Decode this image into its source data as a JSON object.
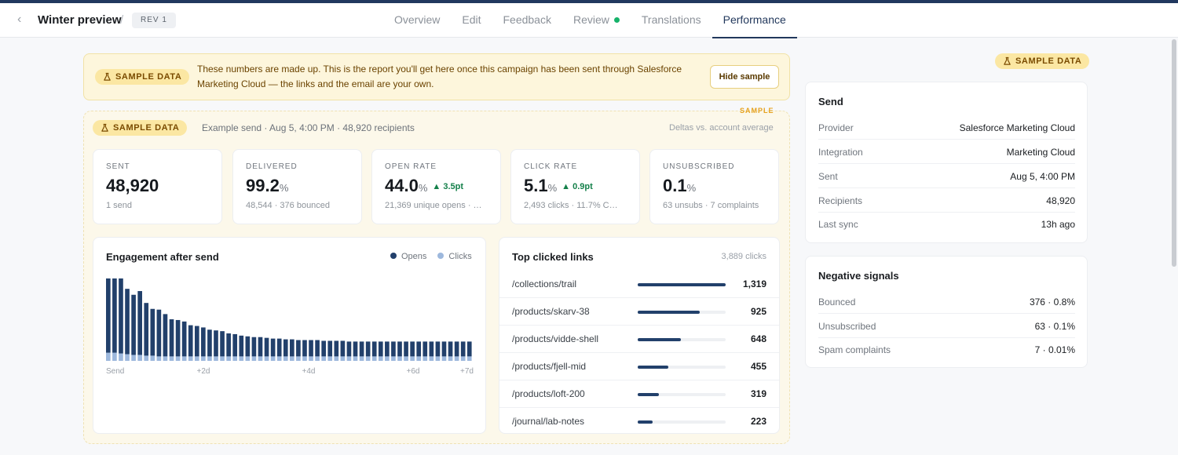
{
  "header": {
    "back_icon": "chevron-left-icon",
    "title": "Winter preview",
    "separator": "/",
    "rev_badge": "REV 1",
    "tabs": [
      {
        "label": "Overview"
      },
      {
        "label": "Edit"
      },
      {
        "label": "Feedback"
      },
      {
        "label": "Review"
      },
      {
        "label": "Translations"
      },
      {
        "label": "Performance"
      }
    ],
    "active_tab": "Performance",
    "review_dot_color": "#16b26a"
  },
  "banner": {
    "pill": "SAMPLE DATA",
    "text": "These numbers are made up. This is the report you'll get here once this campaign has been sent through Salesforce Marketing Cloud — the links and the email are your own.",
    "hide_button": "Hide sample"
  },
  "report": {
    "corner_tag": "SAMPLE",
    "pill": "SAMPLE DATA",
    "subtitle": "Example send · Aug 5, 4:00 PM · 48,920 recipients",
    "note": "Deltas vs. account average",
    "stats": [
      {
        "label": "SENT",
        "value": "48,920",
        "unit": "",
        "delta": "",
        "sub": "1 send"
      },
      {
        "label": "DELIVERED",
        "value": "99.2",
        "unit": "%",
        "delta": "",
        "sub": "48,544 · 376 bounced"
      },
      {
        "label": "OPEN RATE",
        "value": "44.0",
        "unit": "%",
        "delta": "▲ 3.5pt",
        "sub": "21,369 unique opens · …"
      },
      {
        "label": "CLICK RATE",
        "value": "5.1",
        "unit": "%",
        "delta": "▲ 0.9pt",
        "sub": "2,493 clicks · 11.7% C…"
      },
      {
        "label": "UNSUBSCRIBED",
        "value": "0.1",
        "unit": "%",
        "delta": "",
        "sub": "63 unsubs · 7 complaints"
      }
    ]
  },
  "engagement": {
    "title": "Engagement after send",
    "legend": [
      {
        "label": "Opens",
        "color": "#22406b"
      },
      {
        "label": "Clicks",
        "color": "#9db8dd"
      }
    ],
    "x_ticks": [
      "Send",
      "+2d",
      "+4d",
      "+6d",
      "+7d"
    ]
  },
  "chart_data": {
    "type": "bar",
    "title": "Engagement after send",
    "series": [
      {
        "name": "Opens",
        "values": [
          100,
          100,
          101,
          88,
          81,
          86,
          71,
          63,
          63,
          57,
          50,
          49,
          47,
          42,
          41,
          39,
          36,
          35,
          34,
          31,
          30,
          28,
          27,
          26,
          26,
          25,
          24,
          24,
          23,
          23,
          22,
          22,
          22,
          22,
          21,
          21,
          21,
          21,
          20,
          20,
          20,
          20,
          20,
          20,
          20,
          20,
          20,
          20,
          20,
          20,
          20,
          20,
          20,
          20,
          20,
          20,
          20,
          20
        ]
      },
      {
        "name": "Clicks",
        "values": [
          11,
          11,
          10,
          9,
          8,
          8,
          7,
          7,
          6,
          6,
          6,
          6,
          6,
          6,
          6,
          6,
          6,
          6,
          6,
          6,
          6,
          6,
          6,
          6,
          6,
          6,
          6,
          6,
          6,
          6,
          6,
          6,
          6,
          6,
          6,
          6,
          6,
          6,
          6,
          6,
          6,
          6,
          6,
          6,
          6,
          6,
          6,
          6,
          6,
          6,
          6,
          6,
          6,
          6,
          6,
          6,
          6,
          6
        ]
      }
    ],
    "stacked": true,
    "x_ticks": [
      "Send",
      "+2d",
      "+4d",
      "+6d",
      "+7d"
    ],
    "ylim": [
      0,
      112
    ],
    "grid": false,
    "legend": "top-right"
  },
  "links": {
    "title": "Top clicked links",
    "total": "3,889 clicks",
    "items": [
      {
        "path": "/collections/trail",
        "clicks": "1,319",
        "value": 1319
      },
      {
        "path": "/products/skarv-38",
        "clicks": "925",
        "value": 925
      },
      {
        "path": "/products/vidde-shell",
        "clicks": "648",
        "value": 648
      },
      {
        "path": "/products/fjell-mid",
        "clicks": "455",
        "value": 455
      },
      {
        "path": "/products/loft-200",
        "clicks": "319",
        "value": 319
      },
      {
        "path": "/journal/lab-notes",
        "clicks": "223",
        "value": 223
      }
    ],
    "max_value": 1319
  },
  "sidebar": {
    "pill": "SAMPLE DATA",
    "send": {
      "title": "Send",
      "rows": [
        {
          "k": "Provider",
          "v": "Salesforce Marketing Cloud"
        },
        {
          "k": "Integration",
          "v": "Marketing Cloud"
        },
        {
          "k": "Sent",
          "v": "Aug 5, 4:00 PM"
        },
        {
          "k": "Recipients",
          "v": "48,920"
        },
        {
          "k": "Last sync",
          "v": "13h ago"
        }
      ]
    },
    "negative": {
      "title": "Negative signals",
      "rows": [
        {
          "k": "Bounced",
          "v": "376 · 0.8%"
        },
        {
          "k": "Unsubscribed",
          "v": "63 · 0.1%"
        },
        {
          "k": "Spam complaints",
          "v": "7 · 0.01%"
        }
      ]
    }
  }
}
